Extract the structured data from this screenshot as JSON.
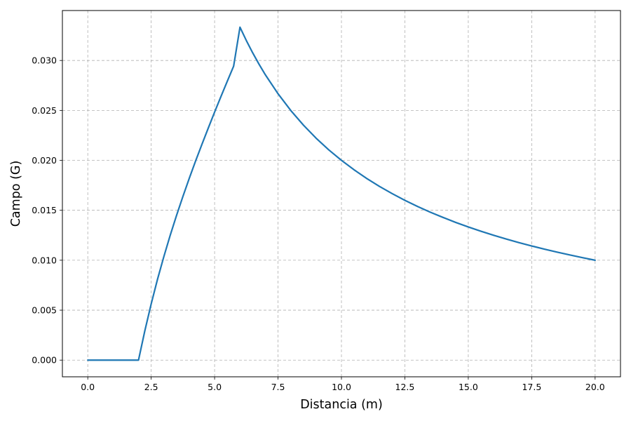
{
  "chart_data": {
    "type": "line",
    "title": "",
    "xlabel": "Distancia (m)",
    "ylabel": "Campo (G)",
    "xlim": [
      -1.0,
      21.0
    ],
    "ylim": [
      -0.00167,
      0.035
    ],
    "grid": true,
    "grid_style": "dashed",
    "legend": "none",
    "x_ticks": [
      0.0,
      2.5,
      5.0,
      7.5,
      10.0,
      12.5,
      15.0,
      17.5,
      20.0
    ],
    "x_tick_labels": [
      "0.0",
      "2.5",
      "5.0",
      "7.5",
      "10.0",
      "12.5",
      "15.0",
      "17.5",
      "20.0"
    ],
    "y_ticks": [
      0.0,
      0.005,
      0.01,
      0.015,
      0.02,
      0.025,
      0.03
    ],
    "y_tick_labels": [
      "0.000",
      "0.005",
      "0.010",
      "0.015",
      "0.020",
      "0.025",
      "0.030"
    ],
    "series": [
      {
        "color": "#1f77b4",
        "x": [
          0,
          0.5,
          1.0,
          1.5,
          2.0,
          2.25,
          2.5,
          2.75,
          3.0,
          3.25,
          3.5,
          3.75,
          4.0,
          4.25,
          4.5,
          4.75,
          5.0,
          5.25,
          5.5,
          5.75,
          6.0,
          6.25,
          6.5,
          6.75,
          7.0,
          7.5,
          8.0,
          8.5,
          9.0,
          9.5,
          10.0,
          10.5,
          11.0,
          11.5,
          12.0,
          12.5,
          13.0,
          13.5,
          14.0,
          14.5,
          15.0,
          15.5,
          16.0,
          16.5,
          17.0,
          17.5,
          18.0,
          18.5,
          19.0,
          19.5,
          20.0
        ],
        "y": [
          0,
          0,
          0,
          0,
          0,
          0.00294,
          0.00563,
          0.0081,
          0.01037,
          0.0125,
          0.01449,
          0.01638,
          0.01819,
          0.01993,
          0.0216,
          0.02323,
          0.02483,
          0.02639,
          0.02792,
          0.02943,
          0.03333,
          0.032,
          0.03077,
          0.02963,
          0.02857,
          0.02667,
          0.025,
          0.02353,
          0.02222,
          0.02105,
          0.02,
          0.01905,
          0.01818,
          0.01739,
          0.01667,
          0.016,
          0.01538,
          0.01481,
          0.01429,
          0.01379,
          0.01333,
          0.0129,
          0.0125,
          0.01212,
          0.01176,
          0.01143,
          0.01111,
          0.01081,
          0.01053,
          0.01026,
          0.01
        ]
      }
    ]
  }
}
